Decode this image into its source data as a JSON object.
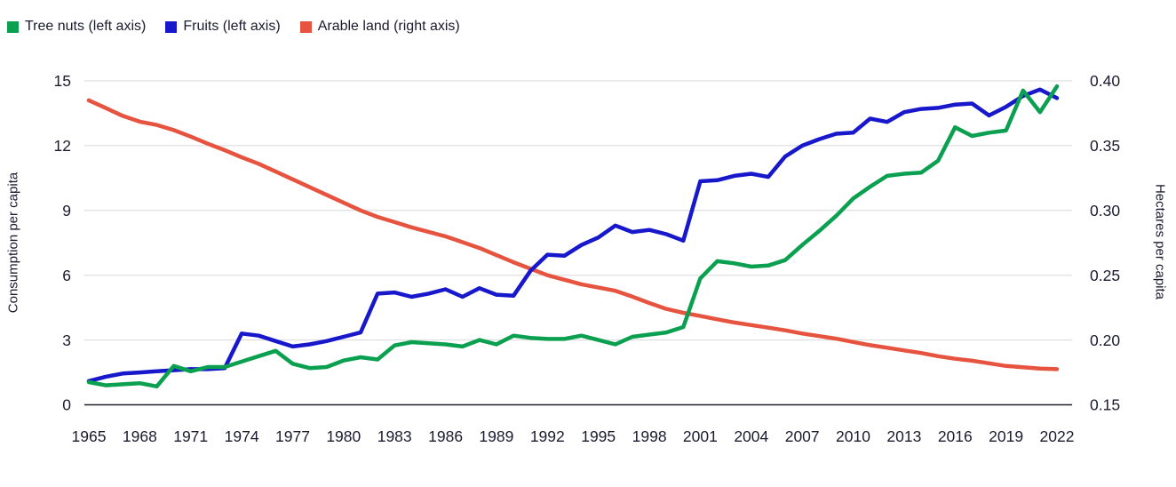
{
  "legend": [
    {
      "label": "Tree nuts (left axis)",
      "color": "#0aa04f",
      "swatch": "green-square"
    },
    {
      "label": "Fruits (left axis)",
      "color": "#1717cc",
      "swatch": "blue-square"
    },
    {
      "label": "Arable land (right axis)",
      "color": "#e6543f",
      "swatch": "red-square"
    }
  ],
  "axes": {
    "left": {
      "title": "Consumption per capita",
      "ticks": [
        0,
        3,
        6,
        9,
        12,
        15
      ],
      "range": [
        0,
        15
      ]
    },
    "right": {
      "title": "Hectares per capita",
      "ticks": [
        0.15,
        0.2,
        0.25,
        0.3,
        0.35,
        0.4
      ],
      "range": [
        0.15,
        0.4
      ]
    },
    "x": {
      "ticks": [
        1965,
        1968,
        1971,
        1974,
        1977,
        1980,
        1983,
        1986,
        1989,
        1992,
        1995,
        1998,
        2001,
        2004,
        2007,
        2010,
        2013,
        2016,
        2019,
        2022
      ],
      "range": [
        1965,
        2022
      ]
    }
  },
  "colors": {
    "grid": "#d7d7d7",
    "axis_line": "#20202c",
    "text": "#1b1b2f",
    "background": "#ffffff"
  },
  "chart_data": {
    "type": "line",
    "title": "",
    "xlabel": "",
    "ylabel_left": "Consumption per capita",
    "ylabel_right": "Hectares per capita",
    "ylim_left": [
      0,
      15
    ],
    "ylim_right": [
      0.15,
      0.4
    ],
    "grid": true,
    "legend_position": "top-left",
    "x": [
      1965,
      1966,
      1967,
      1968,
      1969,
      1970,
      1971,
      1972,
      1973,
      1974,
      1975,
      1976,
      1977,
      1978,
      1979,
      1980,
      1981,
      1982,
      1983,
      1984,
      1985,
      1986,
      1987,
      1988,
      1989,
      1990,
      1991,
      1992,
      1993,
      1994,
      1995,
      1996,
      1997,
      1998,
      1999,
      2000,
      2001,
      2002,
      2003,
      2004,
      2005,
      2006,
      2007,
      2008,
      2009,
      2010,
      2011,
      2012,
      2013,
      2014,
      2015,
      2016,
      2017,
      2018,
      2019,
      2020,
      2021,
      2022
    ],
    "series": [
      {
        "name": "Tree nuts",
        "axis": "left",
        "color": "#0aa04f",
        "values": [
          1.05,
          0.9,
          0.95,
          1.0,
          0.85,
          1.8,
          1.55,
          1.75,
          1.75,
          2.0,
          2.25,
          2.5,
          1.9,
          1.7,
          1.75,
          2.05,
          2.2,
          2.1,
          2.75,
          2.9,
          2.85,
          2.8,
          2.7,
          3.0,
          2.8,
          3.2,
          3.1,
          3.05,
          3.05,
          3.2,
          3.0,
          2.8,
          3.15,
          3.25,
          3.35,
          3.6,
          5.85,
          6.65,
          6.55,
          6.4,
          6.45,
          6.7,
          7.4,
          8.05,
          8.75,
          9.55,
          10.1,
          10.6,
          10.7,
          10.75,
          11.3,
          12.85,
          12.45,
          12.6,
          12.7,
          14.55,
          13.55,
          14.75
        ]
      },
      {
        "name": "Fruits",
        "axis": "left",
        "color": "#1717cc",
        "values": [
          1.1,
          1.3,
          1.45,
          1.5,
          1.55,
          1.6,
          1.65,
          1.65,
          1.7,
          3.3,
          3.2,
          2.95,
          2.7,
          2.8,
          2.95,
          3.15,
          3.35,
          5.15,
          5.2,
          5.0,
          5.15,
          5.35,
          5.0,
          5.4,
          5.1,
          5.05,
          6.2,
          6.95,
          6.9,
          7.4,
          7.75,
          8.3,
          8.0,
          8.1,
          7.9,
          7.6,
          10.35,
          10.4,
          10.6,
          10.7,
          10.55,
          11.5,
          12.0,
          12.3,
          12.55,
          12.6,
          13.25,
          13.1,
          13.55,
          13.7,
          13.75,
          13.9,
          13.95,
          13.4,
          13.8,
          14.3,
          14.6,
          14.2
        ]
      },
      {
        "name": "Arable land",
        "axis": "right",
        "color": "#e6543f",
        "values": [
          0.385,
          0.379,
          0.373,
          0.3685,
          0.366,
          0.362,
          0.357,
          0.3515,
          0.3465,
          0.341,
          0.336,
          0.33,
          0.324,
          0.318,
          0.312,
          0.306,
          0.3,
          0.295,
          0.291,
          0.287,
          0.2835,
          0.28,
          0.2755,
          0.271,
          0.2655,
          0.26,
          0.255,
          0.25,
          0.2465,
          0.243,
          0.2405,
          0.238,
          0.2335,
          0.2285,
          0.224,
          0.221,
          0.2185,
          0.216,
          0.2135,
          0.2115,
          0.2095,
          0.2075,
          0.205,
          0.203,
          0.201,
          0.1985,
          0.196,
          0.194,
          0.192,
          0.19,
          0.1875,
          0.1855,
          0.184,
          0.182,
          0.18,
          0.179,
          0.178,
          0.1775
        ]
      }
    ]
  }
}
